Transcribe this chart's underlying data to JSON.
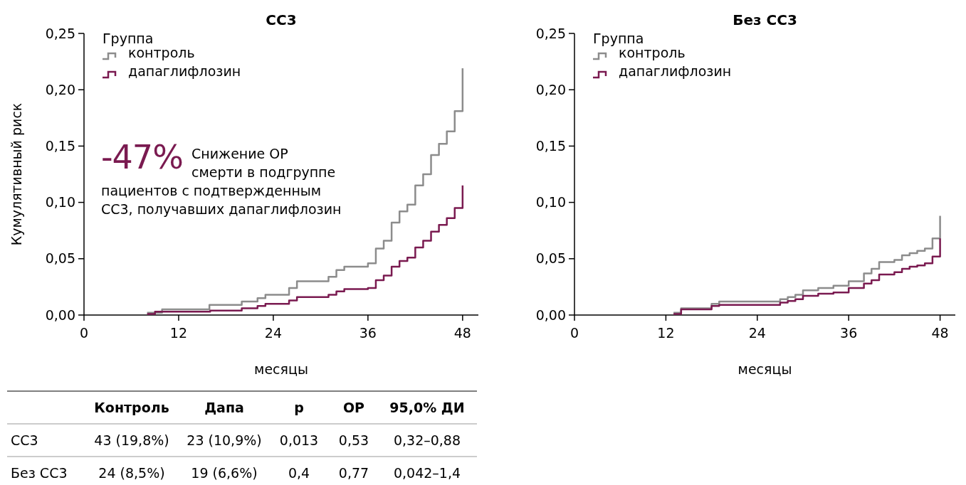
{
  "chart_data": [
    {
      "type": "step",
      "title": "СС3",
      "xlabel": "месяцы",
      "ylabel": "Кумулятивный риск",
      "legend_title": "Группа",
      "legend": "top left",
      "xlim": [
        0,
        50
      ],
      "xticks": [
        0,
        12,
        24,
        36,
        48
      ],
      "ylim": [
        0,
        0.25
      ],
      "yticks": [
        {
          "value": 0,
          "label": "0,00"
        },
        {
          "value": 0.05,
          "label": "0,05"
        },
        {
          "value": 0.1,
          "label": "0,10"
        },
        {
          "value": 0.15,
          "label": "0,15"
        },
        {
          "value": 0.2,
          "label": "0,20"
        },
        {
          "value": 0.25,
          "label": "0,25"
        }
      ],
      "annotations": [
        "-47%",
        "Снижение ОР\nсмерти в подгруппе\nпациентов с подтвержденным\nСС3, получавших дапаглифлозин"
      ],
      "series": [
        {
          "name": "контроль",
          "color": "#8c8c8c",
          "x": [
            8,
            9.9,
            15.9,
            20,
            22,
            23,
            26,
            27,
            31,
            32,
            33,
            36,
            37,
            38,
            39,
            40,
            41,
            42,
            43,
            44,
            45,
            46,
            47,
            48
          ],
          "values": [
            0.002,
            0.005,
            0.009,
            0.012,
            0.015,
            0.018,
            0.024,
            0.03,
            0.034,
            0.04,
            0.043,
            0.046,
            0.059,
            0.066,
            0.082,
            0.092,
            0.098,
            0.115,
            0.125,
            0.142,
            0.152,
            0.163,
            0.181,
            0.219
          ]
        },
        {
          "name": "дапаглифлозин",
          "color": "#7a1a50",
          "x": [
            8,
            9,
            16,
            20,
            22,
            23,
            26,
            27,
            31,
            32,
            33,
            36,
            37,
            38,
            39,
            40,
            41,
            42,
            43,
            44,
            45,
            46,
            47,
            48
          ],
          "values": [
            0.001,
            0.003,
            0.004,
            0.006,
            0.008,
            0.01,
            0.013,
            0.016,
            0.018,
            0.021,
            0.023,
            0.024,
            0.031,
            0.035,
            0.043,
            0.048,
            0.051,
            0.06,
            0.066,
            0.074,
            0.08,
            0.086,
            0.095,
            0.115
          ]
        }
      ]
    },
    {
      "type": "step",
      "title": "Без СС3",
      "xlabel": "месяцы",
      "legend_title": "Группа",
      "legend": "top left",
      "xlim": [
        0,
        50
      ],
      "xticks": [
        0,
        12,
        24,
        36,
        48
      ],
      "ylim": [
        0,
        0.25
      ],
      "yticks": [
        {
          "value": 0,
          "label": "0,00"
        },
        {
          "value": 0.05,
          "label": "0,05"
        },
        {
          "value": 0.1,
          "label": "0,10"
        },
        {
          "value": 0.15,
          "label": "0,15"
        },
        {
          "value": 0.2,
          "label": "0,20"
        },
        {
          "value": 0.25,
          "label": "0,25"
        }
      ],
      "series": [
        {
          "name": "контроль",
          "color": "#8c8c8c",
          "x": [
            13,
            14,
            18,
            19,
            27,
            28,
            29,
            30,
            32,
            34,
            36,
            38,
            39,
            40,
            42,
            43,
            44,
            45,
            46,
            47,
            48
          ],
          "values": [
            0.002,
            0.006,
            0.01,
            0.012,
            0.014,
            0.016,
            0.018,
            0.022,
            0.024,
            0.026,
            0.03,
            0.037,
            0.041,
            0.047,
            0.049,
            0.053,
            0.055,
            0.057,
            0.059,
            0.068,
            0.088
          ]
        },
        {
          "name": "дапаглифлозин",
          "color": "#7a1a50",
          "x": [
            13,
            14,
            18,
            19,
            27,
            28,
            29,
            30,
            32,
            34,
            36,
            38,
            39,
            40,
            42,
            43,
            44,
            45,
            46,
            47,
            48
          ],
          "values": [
            0.001,
            0.005,
            0.008,
            0.009,
            0.011,
            0.0125,
            0.014,
            0.017,
            0.019,
            0.02,
            0.024,
            0.028,
            0.031,
            0.036,
            0.038,
            0.041,
            0.043,
            0.044,
            0.046,
            0.052,
            0.068
          ]
        }
      ]
    },
    {
      "type": "other",
      "categories": [
        "Контроль",
        "Дапа",
        "p",
        "ОР",
        "95,0% ДИ"
      ],
      "y_categories": [
        "СС3",
        "Без СС3"
      ],
      "cell_labels": [
        [
          "43 (19,8%)",
          "23 (10,9%)",
          "0,013",
          "0,53",
          "0,32–0,88"
        ],
        [
          "24 (8,5%)",
          "19 (6,6%)",
          "0,4",
          "0,77",
          "0,042–1,4"
        ]
      ]
    }
  ]
}
